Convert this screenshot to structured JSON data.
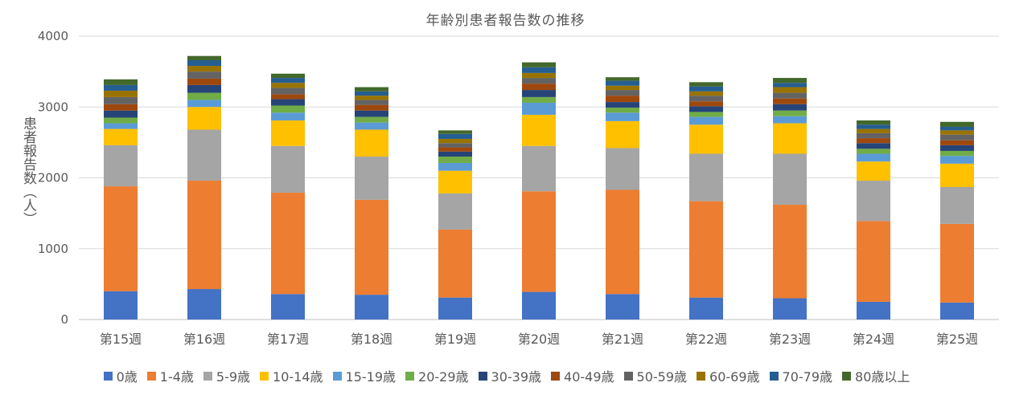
{
  "chart_data": {
    "type": "bar",
    "stacked": true,
    "title": "年齢別患者報告数の推移",
    "xlabel": "",
    "ylabel": "患者報告数（人）",
    "ylim": [
      0,
      4000
    ],
    "yticks": [
      0,
      1000,
      2000,
      3000,
      4000
    ],
    "grid": true,
    "legend_position": "bottom",
    "categories": [
      "第15週",
      "第16週",
      "第17週",
      "第18週",
      "第19週",
      "第20週",
      "第21週",
      "第22週",
      "第23週",
      "第24週",
      "第25週"
    ],
    "series": [
      {
        "name": "0歳",
        "color": "#4472C4",
        "values": [
          400,
          430,
          360,
          350,
          310,
          390,
          360,
          310,
          300,
          250,
          240
        ]
      },
      {
        "name": "1-4歳",
        "color": "#ED7D31",
        "values": [
          1480,
          1530,
          1430,
          1340,
          960,
          1420,
          1470,
          1360,
          1320,
          1140,
          1110
        ]
      },
      {
        "name": "5-9歳",
        "color": "#A5A5A5",
        "values": [
          580,
          720,
          660,
          610,
          510,
          640,
          590,
          670,
          720,
          570,
          520
        ]
      },
      {
        "name": "10-14歳",
        "color": "#FFC000",
        "values": [
          230,
          320,
          360,
          380,
          320,
          440,
          380,
          410,
          430,
          270,
          330
        ]
      },
      {
        "name": "15-19歳",
        "color": "#5B9BD5",
        "values": [
          80,
          100,
          110,
          100,
          110,
          170,
          120,
          110,
          100,
          110,
          110
        ]
      },
      {
        "name": "20-29歳",
        "color": "#70AD47",
        "values": [
          80,
          100,
          100,
          80,
          90,
          80,
          70,
          70,
          80,
          70,
          70
        ]
      },
      {
        "name": "30-39歳",
        "color": "#264478",
        "values": [
          100,
          110,
          90,
          90,
          70,
          100,
          80,
          80,
          90,
          80,
          80
        ]
      },
      {
        "name": "40-49歳",
        "color": "#9E480E",
        "values": [
          90,
          90,
          70,
          80,
          60,
          90,
          90,
          70,
          80,
          70,
          70
        ]
      },
      {
        "name": "50-59歳",
        "color": "#636363",
        "values": [
          100,
          100,
          90,
          70,
          60,
          80,
          80,
          80,
          80,
          70,
          80
        ]
      },
      {
        "name": "60-69歳",
        "color": "#997300",
        "values": [
          90,
          80,
          70,
          60,
          60,
          70,
          60,
          60,
          80,
          60,
          60
        ]
      },
      {
        "name": "70-79歳",
        "color": "#255E91",
        "values": [
          80,
          80,
          70,
          60,
          70,
          80,
          70,
          70,
          60,
          60,
          50
        ]
      },
      {
        "name": "80歳以上",
        "color": "#43682B",
        "values": [
          80,
          60,
          60,
          60,
          50,
          70,
          50,
          60,
          70,
          60,
          70
        ]
      }
    ]
  }
}
